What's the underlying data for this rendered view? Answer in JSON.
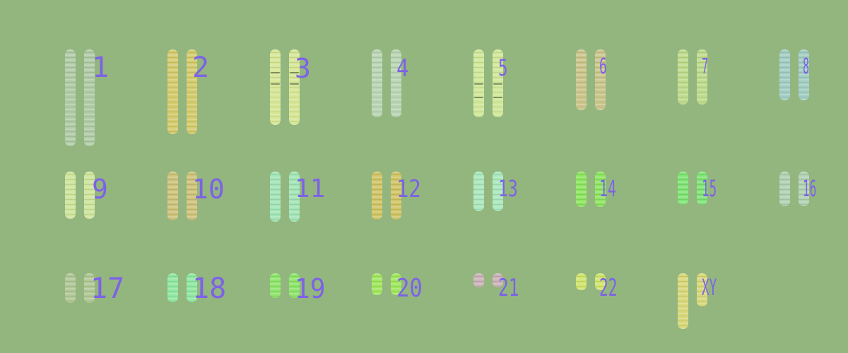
{
  "chromosome_pairs": [
    {
      "label": "1",
      "color": "#b6d0b0"
    },
    {
      "label": "2",
      "color": "#e3d06a"
    },
    {
      "label": "3",
      "color": "#e7f29c"
    },
    {
      "label": "4",
      "color": "#c2dcc0"
    },
    {
      "label": "5",
      "color": "#dff4a0"
    },
    {
      "label": "6",
      "color": "#d8c98f"
    },
    {
      "label": "7",
      "color": "#c8e490"
    },
    {
      "label": "8",
      "color": "#a6d3d3"
    },
    {
      "label": "9",
      "color": "#dbf0a3"
    },
    {
      "label": "10",
      "color": "#dcc57a"
    },
    {
      "label": "11",
      "color": "#a6f0c4"
    },
    {
      "label": "12",
      "color": "#dfc860"
    },
    {
      "label": "13",
      "color": "#b0f3cc"
    },
    {
      "label": "14",
      "color": "#8cf05a"
    },
    {
      "label": "15",
      "color": "#79ef72"
    },
    {
      "label": "16",
      "color": "#b8d8bf"
    },
    {
      "label": "17",
      "color": "#b8cc9c"
    },
    {
      "label": "18",
      "color": "#8ff3a9"
    },
    {
      "label": "19",
      "color": "#8cf066"
    },
    {
      "label": "20",
      "color": "#a4f257"
    },
    {
      "label": "21",
      "color": "#d8b2c6"
    },
    {
      "label": "22",
      "color": "#dff06a"
    },
    {
      "label": "XY",
      "color": "#e8e07a"
    }
  ]
}
